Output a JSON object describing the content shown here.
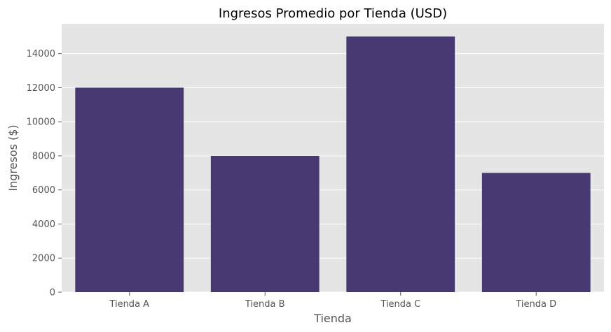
{
  "chart_data": {
    "type": "bar",
    "title": "Ingresos Promedio por Tienda (USD)",
    "xlabel": "Tienda",
    "ylabel": "Ingresos ($)",
    "categories": [
      "Tienda A",
      "Tienda B",
      "Tienda C",
      "Tienda D"
    ],
    "values": [
      12000,
      8000,
      15000,
      7000
    ],
    "ylim": [
      0,
      15750
    ],
    "yticks": [
      0,
      2000,
      4000,
      6000,
      8000,
      10000,
      12000,
      14000
    ],
    "grid": true,
    "legend": "none",
    "colors": {
      "bar": "#483973",
      "plot_background": "#e5e5e5",
      "grid": "#ffffff",
      "tick": "#555555",
      "text": "#555555",
      "title": "#000000"
    }
  }
}
